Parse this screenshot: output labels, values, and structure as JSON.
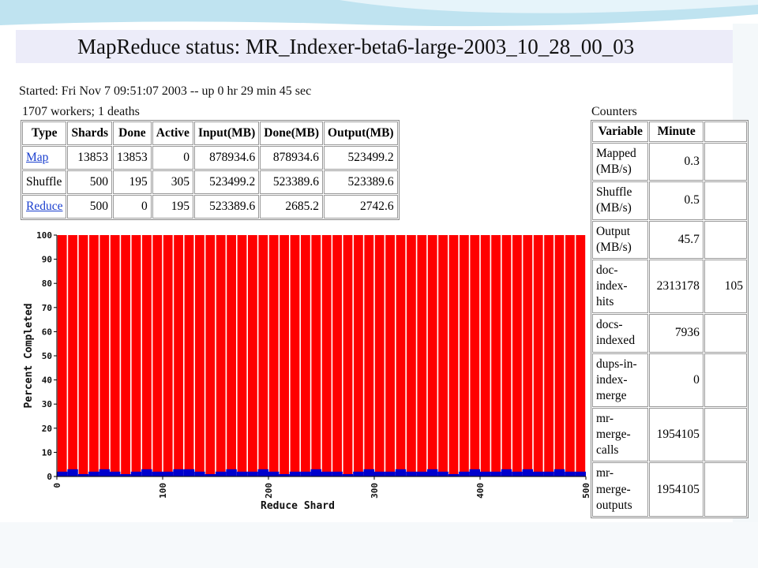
{
  "title": "MapReduce status: MR_Indexer-beta6-large-2003_10_28_00_03",
  "started": "Started: Fri Nov 7 09:51:07 2003 -- up 0 hr 29 min 45 sec",
  "workers": "1707 workers; 1 deaths",
  "status_table": {
    "header": [
      "Type",
      "Shards",
      "Done",
      "Active",
      "Input(MB)",
      "Done(MB)",
      "Output(MB)"
    ],
    "rows": [
      [
        "Map",
        13853,
        13853,
        0,
        878934.6,
        878934.6,
        523499.2
      ],
      [
        "Shuffle",
        500,
        195,
        305,
        523499.2,
        523389.6,
        523389.6
      ],
      [
        "Reduce",
        500,
        0,
        195,
        523389.6,
        2685.2,
        2742.6
      ]
    ]
  },
  "counters": {
    "title": "Counters",
    "header": [
      "Variable",
      "Minute"
    ],
    "rows": [
      [
        "Mapped (MB/s)",
        0.3
      ],
      [
        "Shuffle (MB/s)",
        0.5
      ],
      [
        "Output (MB/s)",
        45.7
      ],
      [
        "doc-index-hits",
        2313178,
        "105"
      ],
      [
        "docs-indexed",
        7936
      ],
      [
        "dups-in-index-merge",
        0
      ],
      [
        "mr-merge-calls",
        1954105
      ],
      [
        "mr-merge-outputs",
        1954105
      ]
    ]
  },
  "chart_data": {
    "type": "histogram",
    "xlabel": "Reduce Shard",
    "ylabel": "Percent Completed",
    "bins": [
      0,
      10,
      20,
      30,
      40,
      50,
      60,
      70,
      80,
      90,
      100,
      110,
      120,
      130,
      140,
      150,
      160,
      170,
      180,
      190,
      200,
      210,
      220,
      230,
      240,
      250,
      260,
      270,
      280,
      290,
      300,
      310,
      320,
      330,
      340,
      350,
      360,
      370,
      380,
      390,
      400,
      410,
      420,
      430,
      440,
      450,
      460,
      470,
      480,
      490,
      500
    ],
    "series": [
      {
        "color": "#ff0000",
        "values": [
          100,
          100,
          100,
          100,
          100,
          100,
          100,
          100,
          100,
          100,
          100,
          100,
          100,
          100,
          100,
          100,
          100,
          100,
          100,
          100,
          100,
          100,
          100,
          100,
          100,
          100,
          100,
          100,
          100,
          100,
          100,
          100,
          100,
          100,
          100,
          100,
          100,
          100,
          100,
          100,
          100,
          100,
          100,
          100,
          100,
          100,
          100,
          100,
          100,
          100
        ]
      },
      {
        "color": "#0000cc",
        "values": [
          2,
          3,
          1,
          2,
          3,
          2,
          1,
          2,
          3,
          2,
          2,
          3,
          3,
          2,
          1,
          2,
          3,
          2,
          2,
          3,
          2,
          1,
          2,
          2,
          3,
          2,
          2,
          1,
          2,
          3,
          2,
          2,
          3,
          2,
          2,
          3,
          2,
          1,
          2,
          3,
          2,
          2,
          3,
          2,
          3,
          2,
          2,
          3,
          2,
          2
        ]
      }
    ],
    "xlim": [
      0,
      500
    ],
    "ylim": [
      0,
      100
    ],
    "xticks": [
      0,
      100,
      200,
      300,
      400,
      500
    ],
    "yticks": [
      0,
      10,
      20,
      30,
      40,
      50,
      60,
      70,
      80,
      90,
      100
    ]
  }
}
